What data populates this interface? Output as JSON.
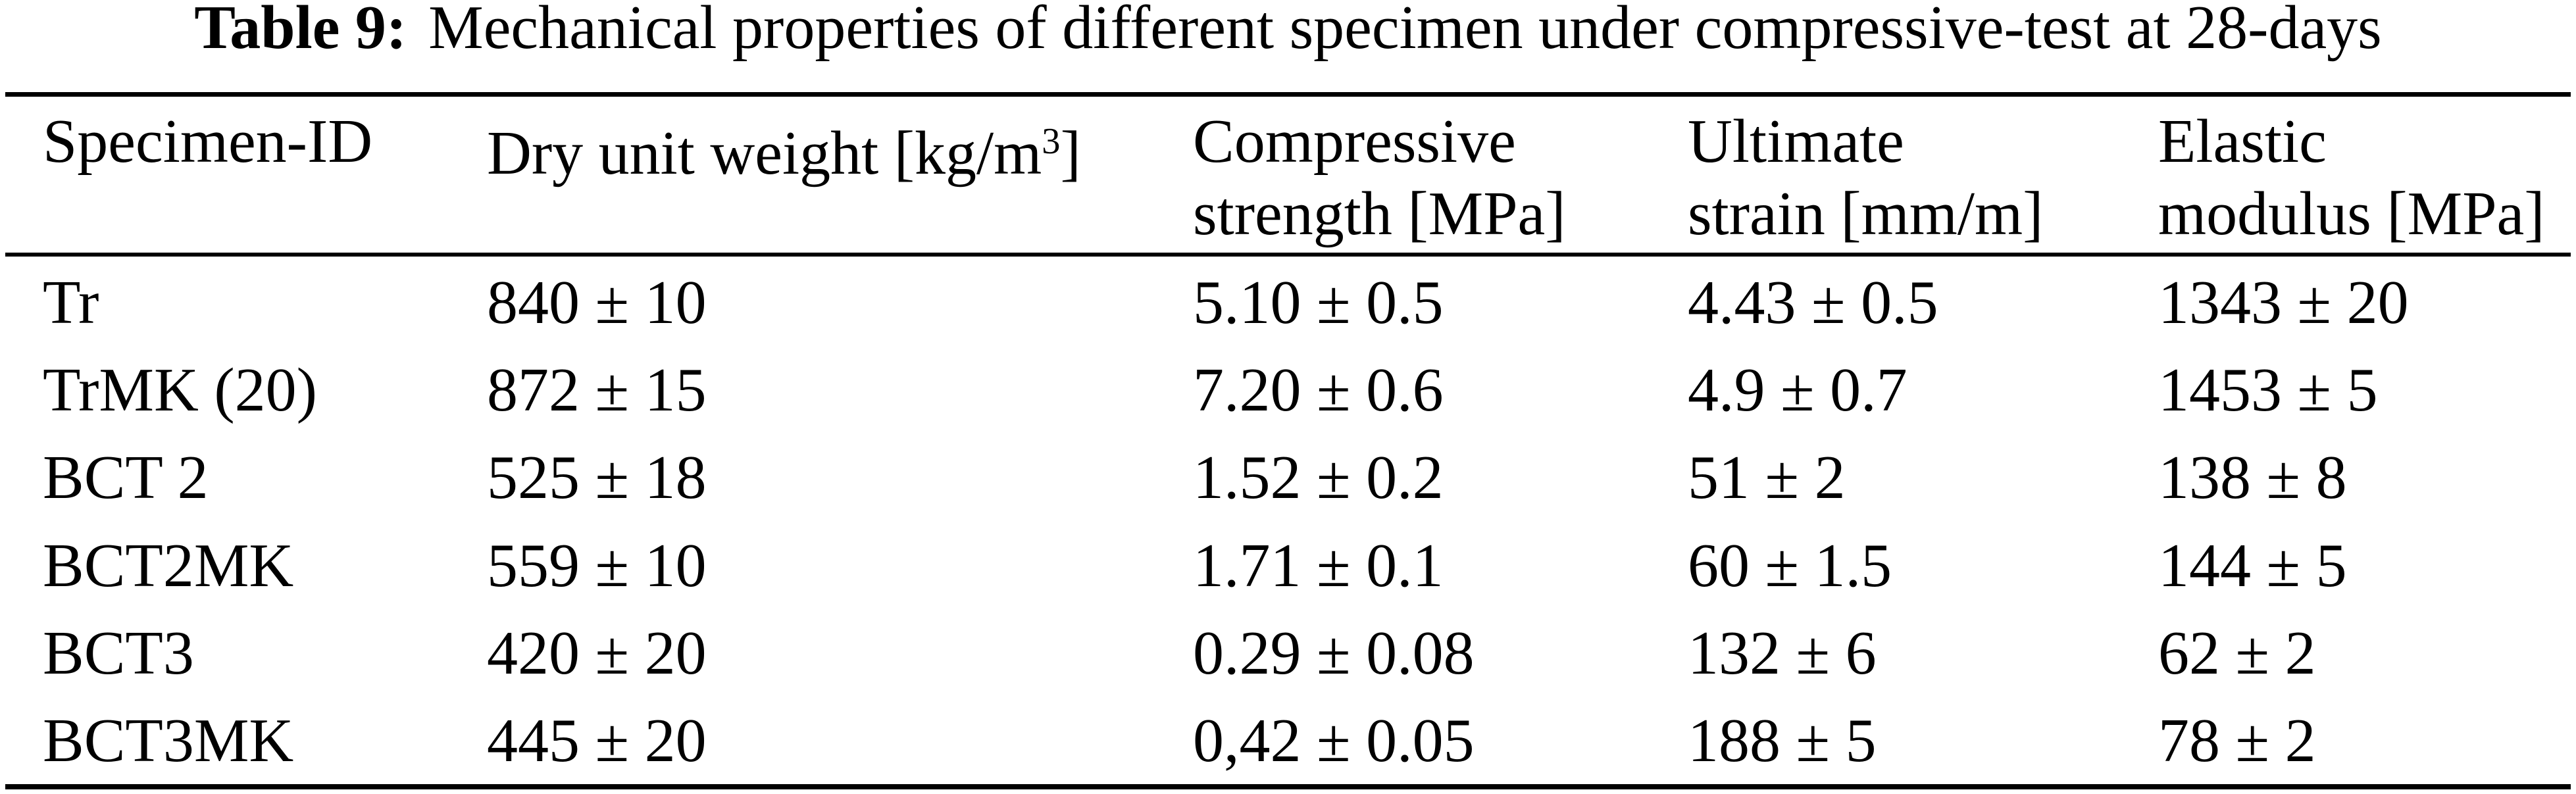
{
  "colors": {
    "background": "#ffffff",
    "text": "#000000",
    "rule": "#000000"
  },
  "caption": {
    "label": "Table 9:",
    "text": "Mechanical properties of different specimen under compressive-test at 28-days"
  },
  "table": {
    "headers": {
      "specimen_id": {
        "line1": "Specimen-ID"
      },
      "dry_unit_weight": {
        "prefix": "Dry unit weight [kg/m",
        "superscript": "3",
        "suffix": "]"
      },
      "compressive_strength": {
        "line1": "Compressive",
        "line2": "strength [MPa]"
      },
      "ultimate_strain": {
        "line1": "Ultimate",
        "line2": "strain [mm/m]"
      },
      "elastic_modulus": {
        "line1": "Elastic",
        "line2": "modulus [MPa]"
      }
    },
    "rows": [
      {
        "specimen_id": "Tr",
        "dry_unit_weight": "840 ± 10",
        "compressive_strength": "5.10 ± 0.5",
        "ultimate_strain": "4.43 ± 0.5",
        "elastic_modulus": "1343 ± 20"
      },
      {
        "specimen_id": "TrMK (20)",
        "dry_unit_weight": "872 ± 15",
        "compressive_strength": "7.20 ± 0.6",
        "ultimate_strain": "4.9 ± 0.7",
        "elastic_modulus": "1453 ± 5"
      },
      {
        "specimen_id": "BCT 2",
        "dry_unit_weight": "525 ± 18",
        "compressive_strength": "1.52 ± 0.2",
        "ultimate_strain": "51 ± 2",
        "elastic_modulus": "138 ± 8"
      },
      {
        "specimen_id": "BCT2MK",
        "dry_unit_weight": "559 ± 10",
        "compressive_strength": "1.71 ± 0.1",
        "ultimate_strain": "60 ± 1.5",
        "elastic_modulus": "144 ± 5"
      },
      {
        "specimen_id": "BCT3",
        "dry_unit_weight": "420 ± 20",
        "compressive_strength": "0.29 ± 0.08",
        "ultimate_strain": "132 ± 6",
        "elastic_modulus": "62 ± 2"
      },
      {
        "specimen_id": "BCT3MK",
        "dry_unit_weight": "445 ± 20",
        "compressive_strength": "0,42 ± 0.05",
        "ultimate_strain": "188 ± 5",
        "elastic_modulus": "78 ± 2"
      }
    ]
  }
}
